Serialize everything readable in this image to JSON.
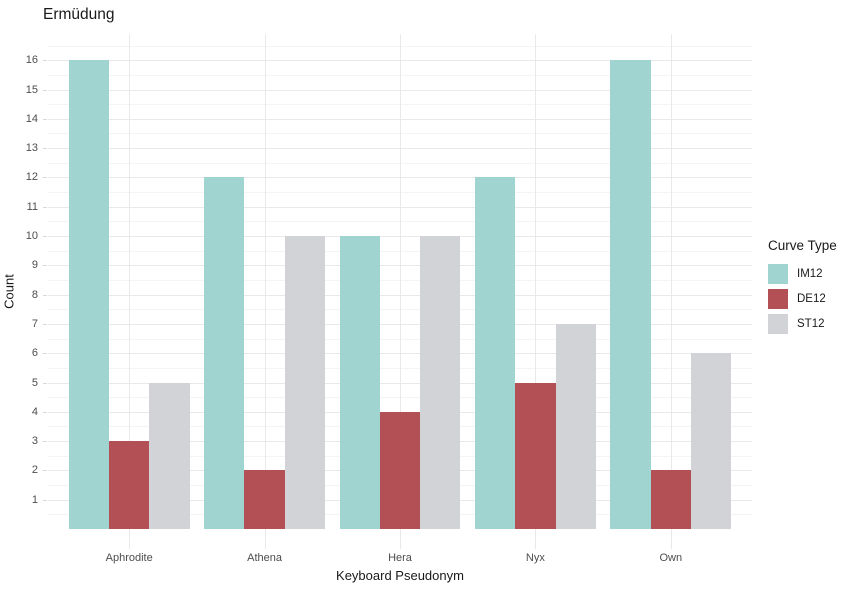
{
  "chart_data": {
    "type": "bar",
    "title": "Ermüdung",
    "xlabel": "Keyboard Pseudonym",
    "ylabel": "Count",
    "categories": [
      "Aphrodite",
      "Athena",
      "Hera",
      "Nyx",
      "Own"
    ],
    "series": [
      {
        "name": "IM12",
        "color": "#A0D4D1",
        "values": [
          16,
          12,
          10,
          12,
          16
        ]
      },
      {
        "name": "DE12",
        "color": "#B25056",
        "values": [
          3,
          2,
          4,
          5,
          2
        ]
      },
      {
        "name": "ST12",
        "color": "#D1D3D7",
        "values": [
          5,
          10,
          10,
          7,
          6
        ]
      }
    ],
    "yticks": [
      1,
      2,
      3,
      4,
      5,
      6,
      7,
      8,
      9,
      10,
      11,
      12,
      13,
      14,
      15,
      16
    ],
    "ylim": [
      0,
      16.8
    ],
    "grid": {
      "horizontal": "major+minor",
      "vertical": "major-at-category-centers"
    },
    "legend": {
      "title": "Curve Type",
      "position": "right",
      "entries": [
        "IM12",
        "DE12",
        "ST12"
      ]
    }
  },
  "colors": {
    "background": "#FFFFFF",
    "axis_text": "#4D4D4D",
    "title_text": "#1A1A1A",
    "grid_major": "#E9E9E9",
    "grid_minor": "#F4F4F4"
  }
}
